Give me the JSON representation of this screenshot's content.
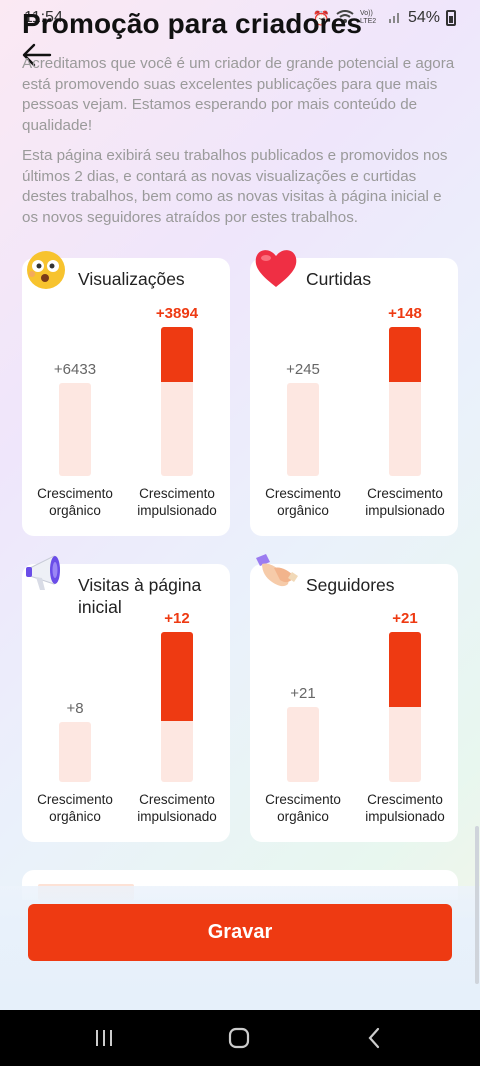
{
  "status_bar": {
    "time": "11:54",
    "battery": "54%",
    "network_label": "Vo)) LTE2"
  },
  "header": {
    "title": "Promoção para criadores"
  },
  "intro": {
    "paragraph_1": "Acreditamos que você é um criador de grande potencial e agora está promovendo suas excelentes publicações para que mais pessoas vejam. Estamos esperando por mais conteúdo de qualidade!",
    "paragraph_2": "Esta página exibirá seu trabalhos publicados e promovidos nos últimos 2 dias, e contará as novas visualizações e curtidas destes trabalhos, bem como as novas visitas à página inicial e os novos seguidores atraídos por estes trabalhos."
  },
  "labels": {
    "organic": "Crescimento orgânico",
    "boosted": "Crescimento impulsionado"
  },
  "cards": [
    {
      "title": "Visualizações",
      "icon": "surprised-face-icon",
      "organic": "+6433",
      "boosted": "+3894",
      "organic_value": 6433,
      "boosted_value": 3894
    },
    {
      "title": "Curtidas",
      "icon": "heart-icon",
      "organic": "+245",
      "boosted": "+148",
      "organic_value": 245,
      "boosted_value": 148
    },
    {
      "title": "Visitas à página inicial",
      "icon": "megaphone-icon",
      "organic": "+8",
      "boosted": "+12",
      "organic_value": 8,
      "boosted_value": 12
    },
    {
      "title": "Seguidores",
      "icon": "handshake-icon",
      "organic": "+21",
      "boosted": "+21",
      "organic_value": 21,
      "boosted_value": 21
    }
  ],
  "footer": {
    "record_button": "Gravar"
  },
  "colors": {
    "accent": "#ee3a12",
    "bar_light": "#fde7e1"
  }
}
